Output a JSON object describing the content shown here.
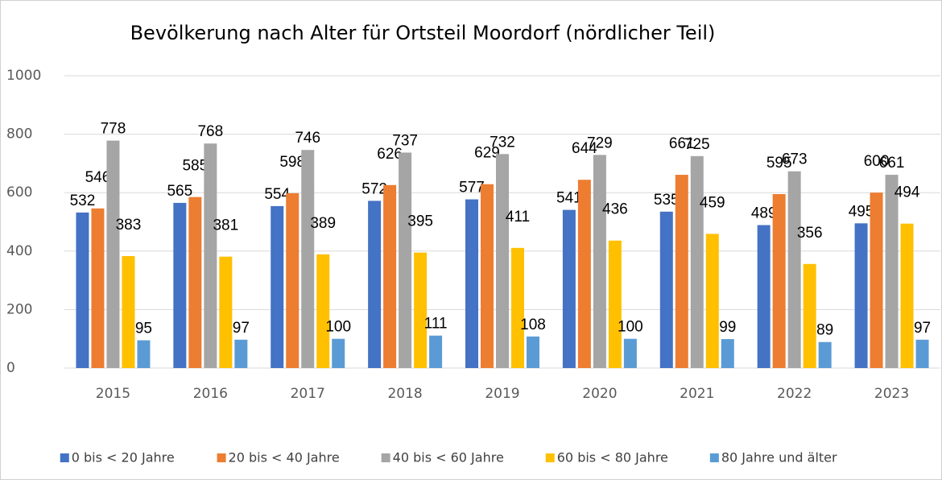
{
  "chart_data": {
    "type": "bar",
    "title": "Bevölkerung nach Alter für Ortsteil Moordorf (nördlicher Teil)",
    "categories": [
      "2015",
      "2016",
      "2017",
      "2018",
      "2019",
      "2020",
      "2021",
      "2022",
      "2023"
    ],
    "series": [
      {
        "name": "0 bis < 20 Jahre",
        "color": "#4472c4",
        "values": [
          532,
          565,
          554,
          572,
          577,
          541,
          535,
          489,
          495
        ]
      },
      {
        "name": "20 bis < 40 Jahre",
        "color": "#ed7d31",
        "values": [
          546,
          585,
          598,
          626,
          629,
          644,
          661,
          595,
          600
        ]
      },
      {
        "name": "40 bis < 60 Jahre",
        "color": "#a5a5a5",
        "values": [
          778,
          768,
          746,
          737,
          732,
          729,
          725,
          673,
          661
        ]
      },
      {
        "name": "60 bis < 80 Jahre",
        "color": "#ffc000",
        "values": [
          383,
          381,
          389,
          395,
          411,
          436,
          459,
          356,
          494
        ]
      },
      {
        "name": "80 Jahre und älter",
        "color": "#5b9bd5",
        "values": [
          95,
          97,
          100,
          111,
          108,
          100,
          99,
          89,
          97
        ]
      }
    ],
    "ylim": [
      0,
      1000
    ],
    "yticks": [
      0,
      200,
      400,
      600,
      800,
      1000
    ],
    "grid": true,
    "legend": "bottom"
  }
}
